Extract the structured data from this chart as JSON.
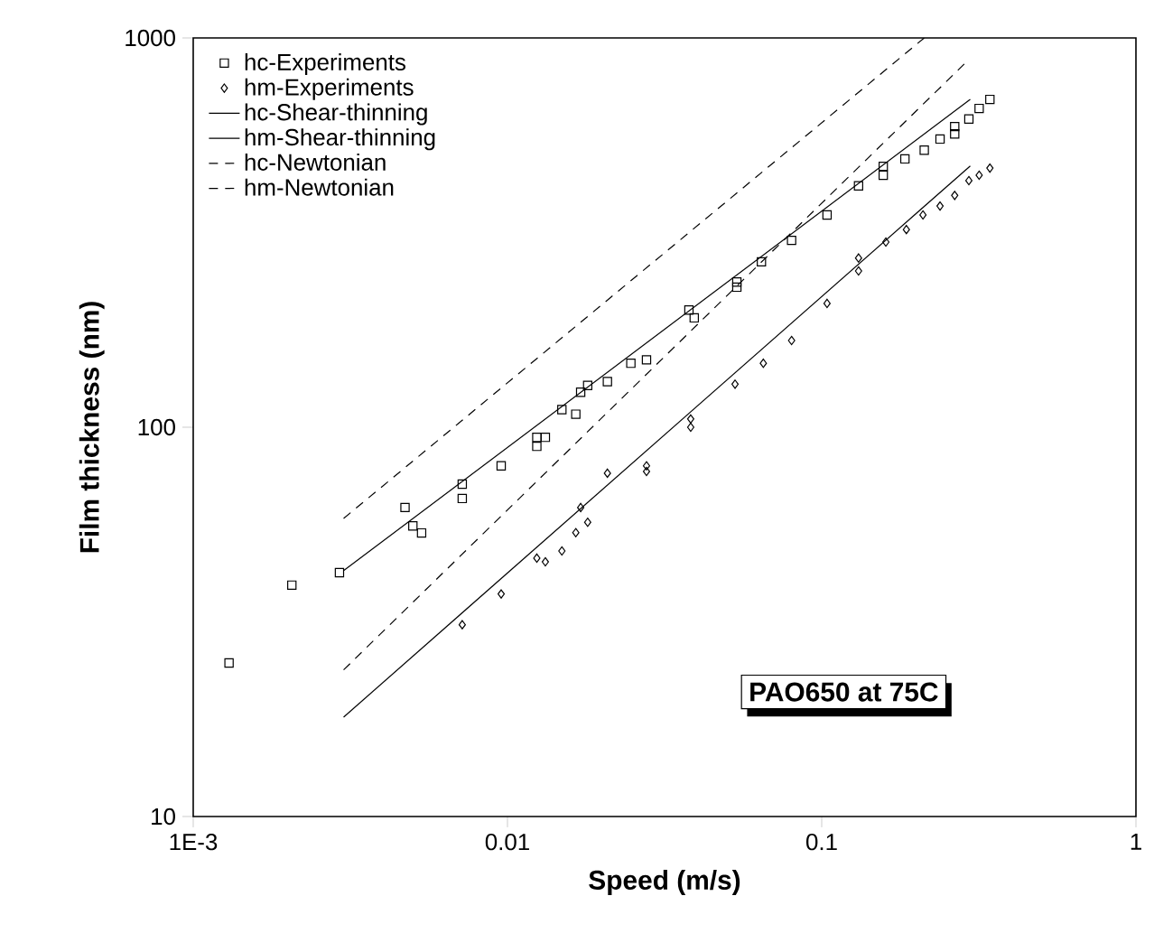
{
  "chart_data": {
    "type": "scatter",
    "xlabel": "Speed (m/s)",
    "ylabel": "Film thickness (nm)",
    "log": "xy",
    "xlim": [
      0.001,
      1
    ],
    "ylim": [
      10,
      1000
    ],
    "xticks": [
      {
        "value": 0.001,
        "label": "1E-3"
      },
      0.01,
      0.1,
      1
    ],
    "yticks": [
      10,
      100,
      1000
    ],
    "legend": "top left",
    "grid": false,
    "annotations": [
      "PAO650 at 75C"
    ],
    "series": [
      {
        "name": "hc-Experiments",
        "marker": "square",
        "color": "#000000",
        "x": [
          0.0013,
          0.00206,
          0.00292,
          0.00472,
          0.005,
          0.00533,
          0.00718,
          0.00718,
          0.00955,
          0.0124,
          0.0124,
          0.0132,
          0.0149,
          0.0165,
          0.0171,
          0.018,
          0.0208,
          0.0247,
          0.0277,
          0.0378,
          0.0393,
          0.0537,
          0.0537,
          0.0643,
          0.0802,
          0.104,
          0.131,
          0.157,
          0.157,
          0.184,
          0.212,
          0.238,
          0.265,
          0.265,
          0.294,
          0.317,
          0.343
        ],
        "values": [
          24.8,
          39.3,
          42.3,
          62.2,
          55.8,
          53.5,
          71.4,
          65.6,
          79.6,
          89.3,
          94.2,
          94.2,
          111,
          108,
          123,
          128,
          131,
          146,
          149,
          200,
          191,
          236,
          229,
          266,
          302,
          351,
          417,
          468,
          444,
          489,
          515,
          550,
          567,
          592,
          619,
          659,
          695
        ]
      },
      {
        "name": "hm-Experiments",
        "marker": "diamond",
        "color": "#000000",
        "x": [
          0.00718,
          0.00955,
          0.0124,
          0.0132,
          0.0149,
          0.0165,
          0.0171,
          0.018,
          0.0208,
          0.0277,
          0.0277,
          0.0383,
          0.0383,
          0.053,
          0.0652,
          0.0802,
          0.104,
          0.131,
          0.131,
          0.16,
          0.186,
          0.21,
          0.238,
          0.265,
          0.294,
          0.317,
          0.343
        ],
        "values": [
          31.1,
          37.3,
          46.1,
          45.1,
          48.1,
          53.6,
          62.2,
          57,
          76.2,
          79.6,
          77,
          105,
          100,
          129,
          146,
          167,
          208,
          272,
          252,
          299,
          322,
          351,
          370,
          394,
          430,
          444,
          463
        ]
      },
      {
        "name": "hc-Shear-thinning",
        "type": "line",
        "line_style": "solid",
        "color": "#000000",
        "x": [
          0.00301,
          0.297
        ],
        "values": [
          42.8,
          695
        ]
      },
      {
        "name": "hm-Shear-thinning",
        "type": "line",
        "line_style": "solid",
        "color": "#000000",
        "x": [
          0.00301,
          0.297
        ],
        "values": [
          18,
          469
        ]
      },
      {
        "name": "hc-Newtonian",
        "type": "line",
        "line_style": "dashed",
        "color": "#000000",
        "x": [
          0.00301,
          0.212
        ],
        "values": [
          58.3,
          1000
        ]
      },
      {
        "name": "hm-Newtonian",
        "type": "line",
        "line_style": "dashed",
        "color": "#000000",
        "x": [
          0.00301,
          0.294
        ],
        "values": [
          23.8,
          880
        ]
      }
    ]
  }
}
